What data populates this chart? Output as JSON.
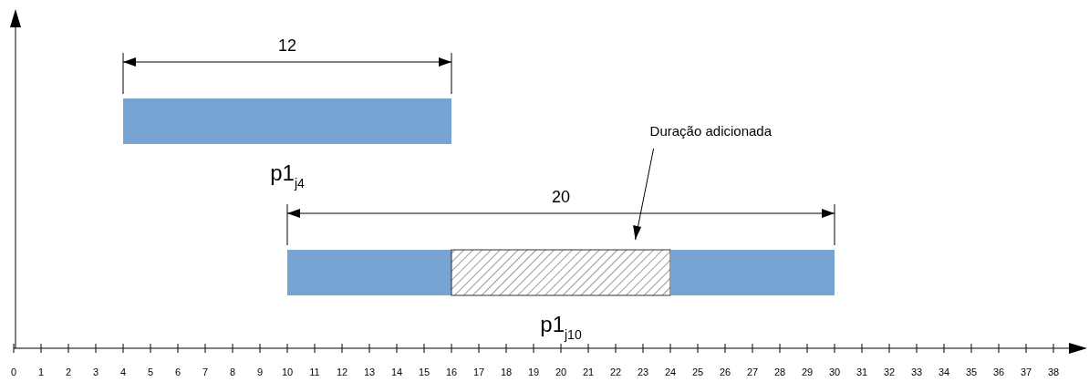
{
  "chart_data": {
    "type": "bar",
    "orientation": "horizontal",
    "categories": [
      "p1$_{j4}$",
      "p1$_{j10}$"
    ],
    "series": [
      {
        "color": "#77a4d2",
        "base": [
          4,
          10
        ],
        "values": [
          12,
          6
        ]
      },
      {
        "color": "#333333",
        "base": [
          null,
          16
        ],
        "values": [
          null,
          8
        ]
      },
      {
        "color": "#77a4d2",
        "base": [
          null,
          24
        ],
        "values": [
          null,
          6
        ]
      }
    ],
    "xlim": [
      0,
      39
    ],
    "xticks": [
      0,
      1,
      2,
      3,
      4,
      5,
      6,
      7,
      8,
      9,
      10,
      11,
      12,
      13,
      14,
      15,
      16,
      17,
      18,
      19,
      20,
      21,
      22,
      23,
      24,
      25,
      26,
      27,
      28,
      29,
      30,
      31,
      32,
      33,
      34,
      35,
      36,
      37,
      38
    ],
    "tick_labels": "x",
    "annotations": [
      "12",
      "20",
      "Duração adicionada"
    ]
  }
}
